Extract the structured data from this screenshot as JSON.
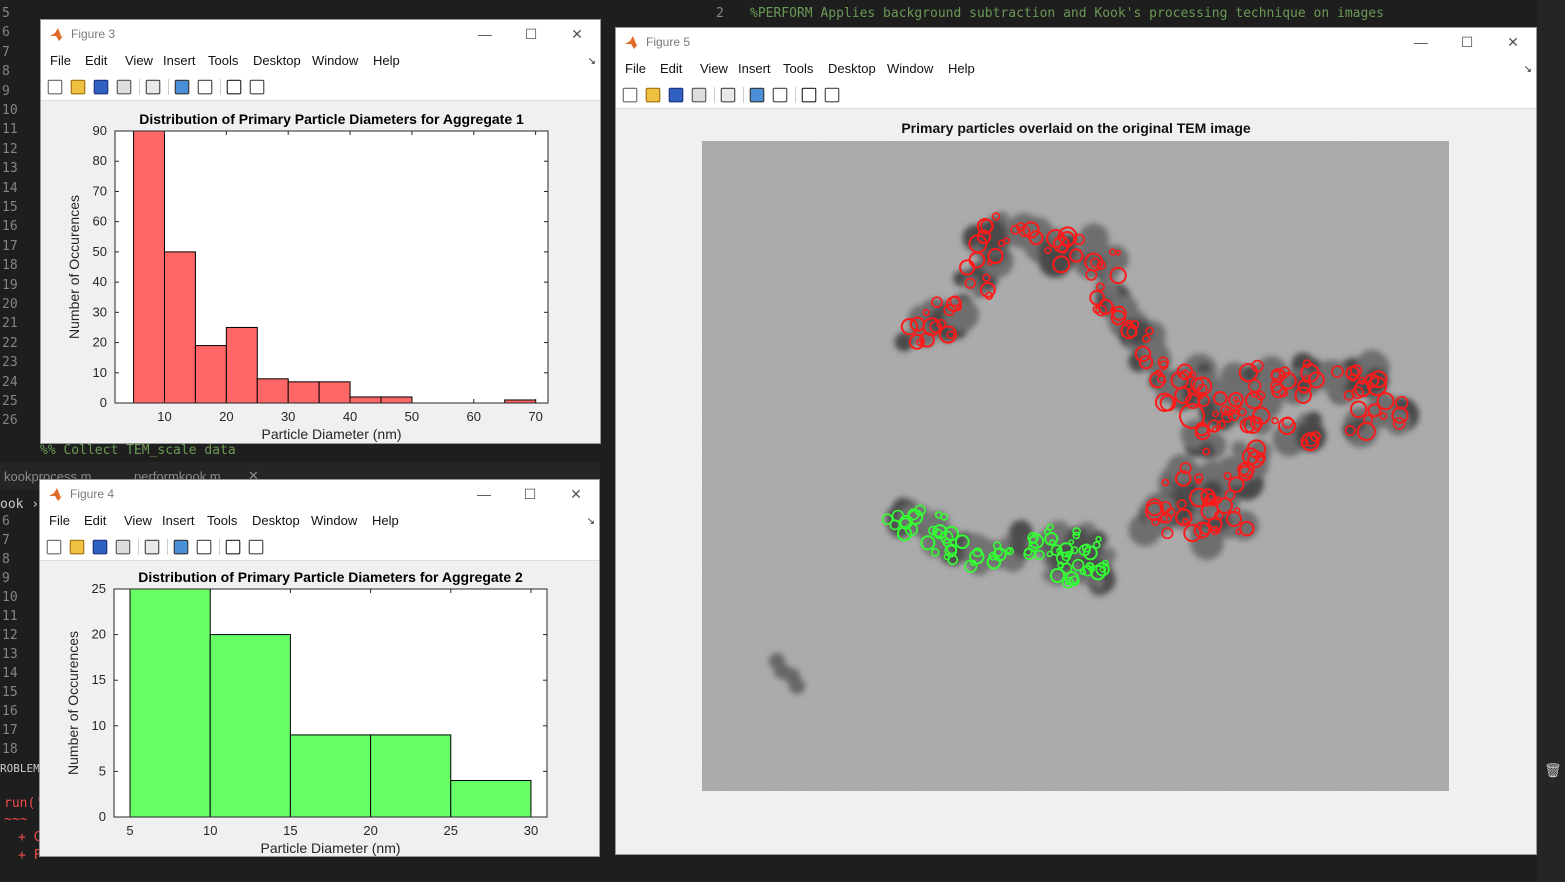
{
  "editor": {
    "top_line_numbers": [
      "5",
      "6",
      "7",
      "8",
      "9",
      "10",
      "11",
      "12",
      "13",
      "14",
      "15",
      "16",
      "17",
      "18",
      "19",
      "20",
      "21",
      "22",
      "23",
      "24",
      "25",
      "26"
    ],
    "bottom_line_numbers": [
      "6",
      "7",
      "8",
      "9",
      "10",
      "11",
      "12",
      "13",
      "14",
      "15",
      "16",
      "17",
      "18"
    ],
    "comment_line": "%% Collect TEM_scale data",
    "right_line_number": "2",
    "right_comment": "%PERFORM Applies background subtraction and Kook's processing technique on images",
    "tab_left": "kookprocess.m",
    "tab_right": "performkook.m",
    "breadcrumb": "ook ›",
    "problems_label": "ROBLEMS",
    "terminal_run": "run('",
    "terminal_plus1": "+ C",
    "terminal_plus2": "+ F",
    "terminal_tilde": "~~~"
  },
  "menu": [
    "File",
    "Edit",
    "View",
    "Insert",
    "Tools",
    "Desktop",
    "Window",
    "Help"
  ],
  "figure3": {
    "window_title": "Figure 3",
    "chart_data": {
      "type": "bar",
      "title": "Distribution of Primary Particle Diameters for Aggregate 1",
      "xlabel": "Particle Diameter (nm)",
      "ylabel": "Number of Occurences",
      "bin_edges": [
        5,
        10,
        15,
        20,
        25,
        30,
        35,
        40,
        45,
        50,
        55,
        60,
        65,
        70
      ],
      "values": [
        90,
        50,
        19,
        25,
        8,
        7,
        7,
        2,
        2,
        0,
        0,
        0,
        1
      ],
      "xlim": [
        2,
        72
      ],
      "ylim": [
        0,
        90
      ],
      "xticks": [
        10,
        20,
        30,
        40,
        50,
        60,
        70
      ],
      "yticks": [
        0,
        10,
        20,
        30,
        40,
        50,
        60,
        70,
        80,
        90
      ],
      "color": "#ff6666"
    }
  },
  "figure4": {
    "window_title": "Figure 4",
    "chart_data": {
      "type": "bar",
      "title": "Distribution of Primary Particle Diameters for Aggregate 2",
      "xlabel": "Particle Diameter (nm)",
      "ylabel": "Number of Occurences",
      "bin_edges": [
        5,
        10,
        15,
        20,
        25,
        30
      ],
      "values": [
        25,
        20,
        9,
        9,
        4
      ],
      "xlim": [
        4,
        31
      ],
      "ylim": [
        0,
        25
      ],
      "xticks": [
        5,
        10,
        15,
        20,
        25,
        30
      ],
      "yticks": [
        0,
        5,
        10,
        15,
        20,
        25
      ],
      "color": "#66ff66"
    }
  },
  "figure5": {
    "window_title": "Figure 5",
    "title": "Primary particles overlaid on the original TEM image"
  }
}
